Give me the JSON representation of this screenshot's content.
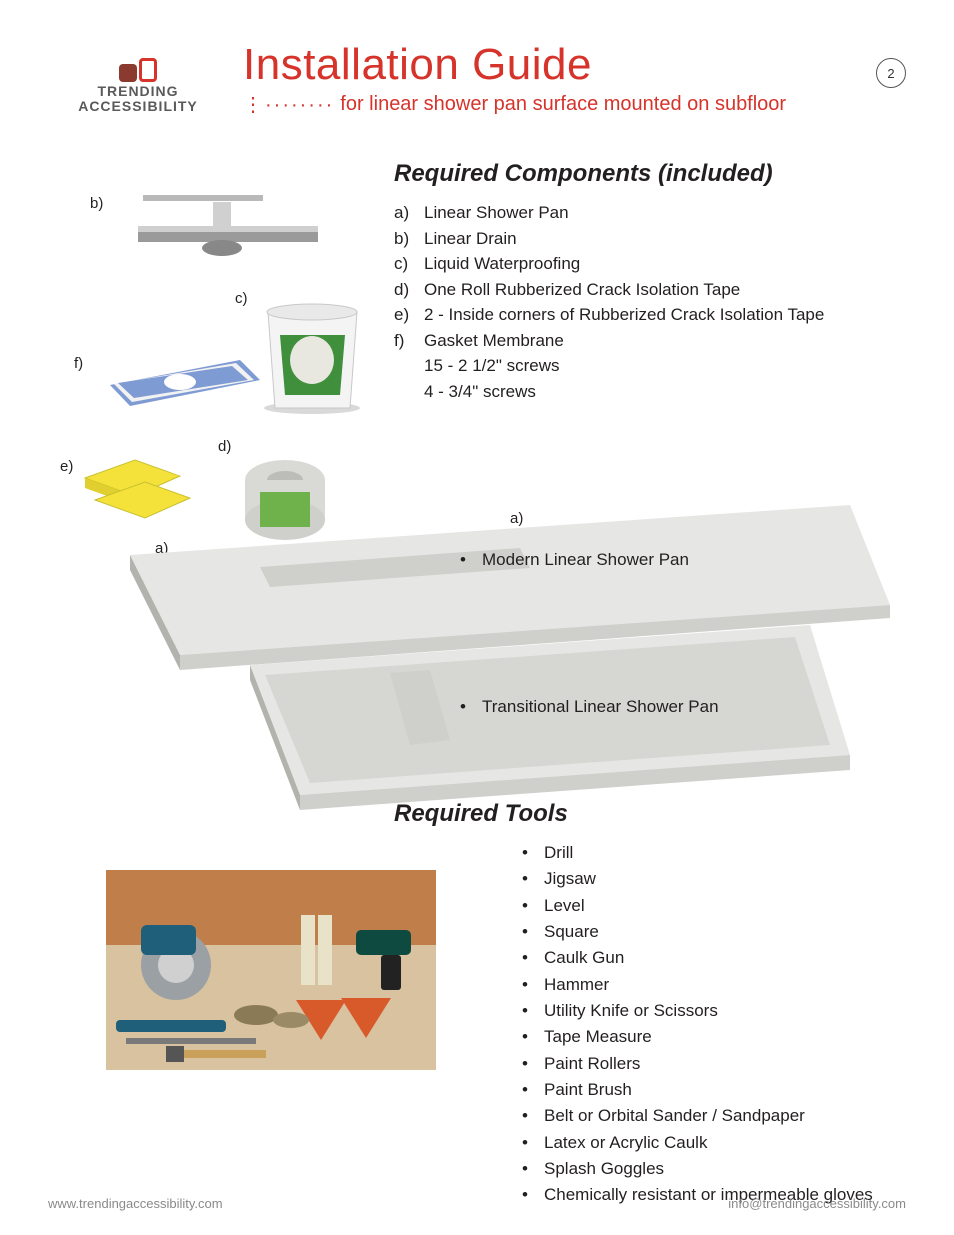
{
  "colors": {
    "accent": "#d6332b",
    "text": "#231f20",
    "muted": "#8a8a8a",
    "pan_light": "#e6e6e4",
    "pan_mid": "#cfcfcb",
    "pan_dark": "#b3b3ae",
    "bucket_green": "#3f8f3d",
    "bucket_white": "#f4f4f4",
    "membrane_blue": "#7f9bd3",
    "corner_yellow": "#f4e23a",
    "tape_roll": "#d9d9d5",
    "tape_label": "#6fb24c",
    "drain_grey": "#b9b9b9",
    "photo_bg": "#d8c2a0",
    "photo_wall": "#c07f4a",
    "tool_blue": "#1f5f7a",
    "tool_orange": "#d85a2a",
    "tool_grey": "#7a7a7a"
  },
  "page_number": "2",
  "logo": {
    "line1": "TRENDING",
    "line2": "ACCESSIBILITY"
  },
  "title": "Installation Guide",
  "subtitle": "for linear shower pan surface mounted on subfloor",
  "components": {
    "heading": "Required Components (included)",
    "items": [
      {
        "key": "a)",
        "label": "Linear Shower Pan"
      },
      {
        "key": "b)",
        "label": "Linear Drain"
      },
      {
        "key": "c)",
        "label": "Liquid Waterproofing"
      },
      {
        "key": "d)",
        "label": "One Roll Rubberized Crack Isolation Tape"
      },
      {
        "key": "e)",
        "label": "2 - Inside corners of Rubberized Crack Isolation Tape"
      },
      {
        "key": "f)",
        "label": "Gasket Membrane"
      }
    ],
    "sub_items": [
      "15 - 2 1/2\" screws",
      "4 - 3/4\" screws"
    ],
    "tags": {
      "a": "a)",
      "b": "b)",
      "c": "c)",
      "d": "d)",
      "e": "e)",
      "f": "f)"
    }
  },
  "pans": {
    "label_a": "a)",
    "modern": "Modern Linear Shower Pan",
    "transitional": "Transitional Linear Shower Pan"
  },
  "tools": {
    "heading": "Required Tools",
    "items": [
      "Drill",
      "Jigsaw",
      "Level",
      "Square",
      "Caulk Gun",
      "Hammer",
      "Utility Knife or Scissors",
      "Tape Measure",
      "Paint Rollers",
      "Paint Brush",
      "Belt or Orbital Sander / Sandpaper",
      "Latex or Acrylic Caulk",
      "Splash Goggles",
      "Chemically resistant or impermeable gloves"
    ]
  },
  "footer": {
    "left": "www.trendingaccessibility.com",
    "right": "info@trendingaccessibility.com"
  }
}
